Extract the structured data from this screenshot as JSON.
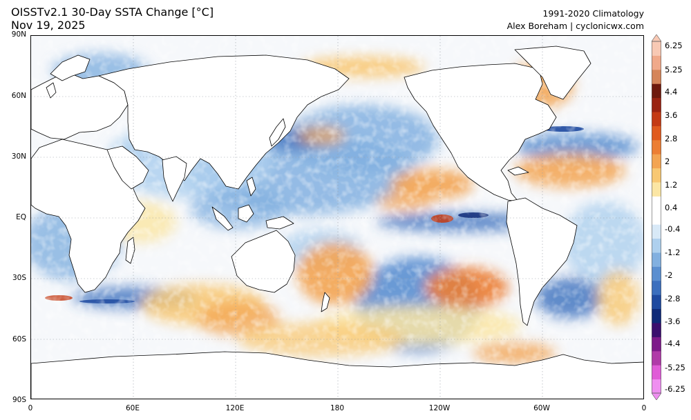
{
  "header": {
    "title": "OISSTv2.1 30-Day SSTA Change [°C]",
    "date": "Nov 19, 2025",
    "climatology": "1991-2020 Climatology",
    "author": "Alex Boreham | cyclonicwx.com"
  },
  "axes": {
    "lat_labels": [
      "90N",
      "60N",
      "30N",
      "EQ",
      "30S",
      "60S",
      "90S"
    ],
    "lon_labels": [
      "0",
      "60E",
      "120E",
      "180",
      "120W",
      "60W",
      "0"
    ]
  },
  "colorbar": {
    "labels": [
      "6.25",
      "5.25",
      "4.4",
      "3.6",
      "2.8",
      "2",
      "1.2",
      "0.4",
      "-0.4",
      "-1.2",
      "-2",
      "-2.8",
      "-3.6",
      "-4.4",
      "-5.25",
      "-6.25"
    ],
    "colors": [
      "#ef8ff0",
      "#e05cd7",
      "#b03aa8",
      "#7e1a8a",
      "#3b0f6e",
      "#0f2a78",
      "#1f4aa0",
      "#3c6fbe",
      "#5b8fd0",
      "#82b0e0",
      "#aed0ee",
      "#d8e9f7",
      "#ffffff",
      "#ffffff",
      "#fbe6a4",
      "#f8c873",
      "#f3a452",
      "#ec7e34",
      "#e05a1e",
      "#c43a14",
      "#9a2412",
      "#6e1a0e",
      "#d5855a",
      "#f0a98a",
      "#f8c9b4"
    ]
  },
  "map_colors": {
    "land": "#ffffff",
    "ocean_neutral": "#f6f8fb",
    "warm": "#f3a452",
    "warm_strong": "#e05a1e",
    "cool": "#82b0e0",
    "cool_strong": "#3c6fbe"
  }
}
